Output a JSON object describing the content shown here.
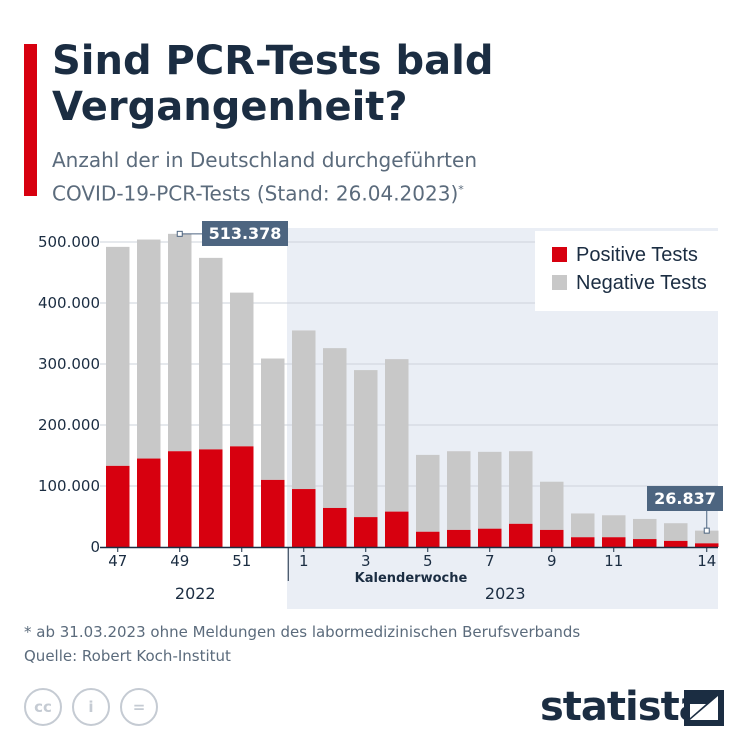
{
  "title": "Sind PCR-Tests bald Vergangenheit?",
  "subtitle_line1": "Anzahl der in Deutschland durchgeführten",
  "subtitle_line2": "COVID-19-PCR-Tests (Stand: 26.04.2023)",
  "subtitle_marker": "*",
  "footnote": "* ab 31.03.2023 ohne Meldungen des labormedizinischen Berufsverbands",
  "source": "Quelle: Robert Koch-Institut",
  "brand": "statista",
  "license_icons": [
    "cc-icon",
    "attribution-icon",
    "no-derivatives-icon"
  ],
  "colors": {
    "positive": "#d7000f",
    "negative": "#c8c8c8",
    "highlight_bg": "#eaeef5",
    "accent": "#d7000f",
    "callout": "#4d6580"
  },
  "chart_data": {
    "type": "bar",
    "stacked": true,
    "categories": [
      "47",
      "48",
      "49",
      "50",
      "51",
      "52",
      "1",
      "2",
      "3",
      "4",
      "5",
      "6",
      "7",
      "8",
      "9",
      "10",
      "11",
      "12",
      "13",
      "14"
    ],
    "tick_labels": [
      "47",
      "",
      "49",
      "",
      "51",
      "",
      "1",
      "",
      "3",
      "",
      "5",
      "",
      "7",
      "",
      "9",
      "",
      "11",
      "",
      "",
      "14"
    ],
    "years": [
      {
        "label": "2022",
        "from": 0,
        "to": 5
      },
      {
        "label": "2023",
        "from": 6,
        "to": 19
      }
    ],
    "series": [
      {
        "name": "Positive Tests",
        "color": "#d7000f",
        "values": [
          133000,
          145000,
          157000,
          160000,
          165000,
          110000,
          95000,
          64000,
          49000,
          58000,
          25000,
          28000,
          30000,
          38000,
          28000,
          16000,
          16000,
          13000,
          10000,
          6000
        ]
      },
      {
        "name": "Negative Tests",
        "color": "#c8c8c8",
        "values": [
          359000,
          359000,
          356378,
          314000,
          252000,
          199000,
          260000,
          262000,
          241000,
          250000,
          126000,
          129000,
          126000,
          119000,
          79000,
          39000,
          36000,
          33000,
          29000,
          20837
        ]
      }
    ],
    "totals_callouts": [
      {
        "index": 2,
        "label": "513.378"
      },
      {
        "index": 19,
        "label": "26.837"
      }
    ],
    "xlabel": "Kalenderwoche",
    "ylabel": "",
    "ylim": [
      0,
      500000
    ],
    "yticks": [
      0,
      100000,
      200000,
      300000,
      400000,
      500000
    ],
    "ytick_labels": [
      "0",
      "100.000",
      "200.000",
      "300.000",
      "400.000",
      "500.000"
    ],
    "highlight_from_index": 6,
    "grid": true,
    "legend": "top-right"
  }
}
